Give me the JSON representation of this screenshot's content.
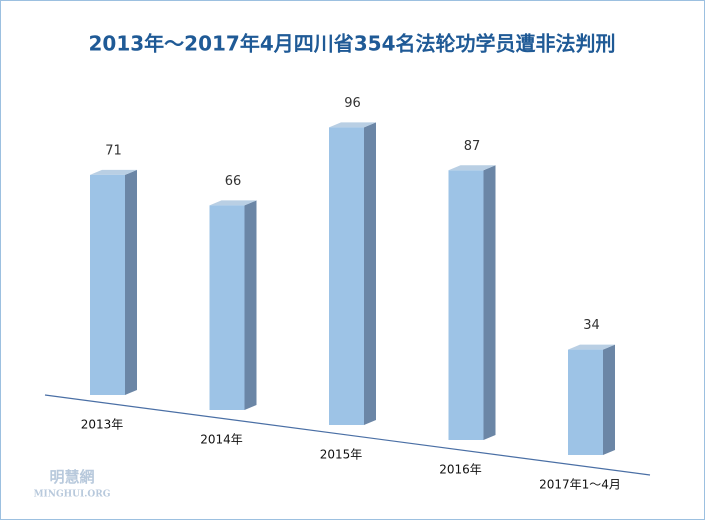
{
  "chart_data": {
    "type": "bar3d",
    "title": "2013年～2017年4月四川省354名法轮功学员遭非法判刑",
    "categories": [
      "2013年",
      "2014年",
      "2015年",
      "2016年",
      "2017年1～4月"
    ],
    "values": [
      71,
      66,
      96,
      87,
      34
    ],
    "color": "#9dc3e6",
    "watermark": {
      "name": "明慧網",
      "site": "MINGHUI.ORG"
    }
  }
}
